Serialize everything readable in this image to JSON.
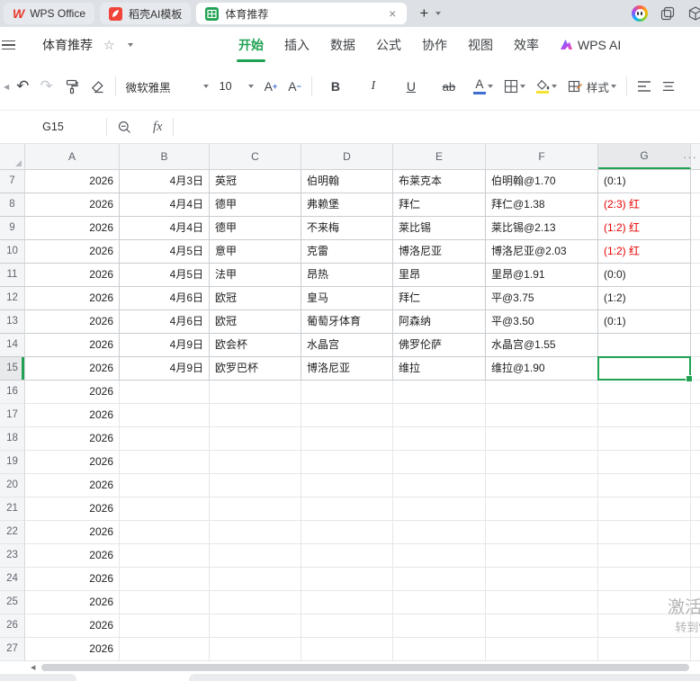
{
  "tab_bar": {
    "tabs": [
      {
        "label": "WPS Office",
        "active": false
      },
      {
        "label": "稻壳AI模板",
        "active": false
      },
      {
        "label": "体育推荐",
        "active": true
      }
    ],
    "close_icon": "×",
    "new_tab_icon": "+"
  },
  "menu_bar": {
    "doc_title": "体育推荐",
    "star_icon": "☆",
    "items": [
      {
        "label": "开始",
        "active": true
      },
      {
        "label": "插入",
        "active": false
      },
      {
        "label": "数据",
        "active": false
      },
      {
        "label": "公式",
        "active": false
      },
      {
        "label": "协作",
        "active": false
      },
      {
        "label": "视图",
        "active": false
      },
      {
        "label": "效率",
        "active": false
      },
      {
        "label": "WPS AI",
        "active": false
      }
    ]
  },
  "toolbar": {
    "undo_icon": "↶",
    "redo_icon": "↷",
    "font_name": "微软雅黑",
    "font_size": "10",
    "grow_font_letter": "A",
    "grow_font_sign": "+",
    "shrink_font_letter": "A",
    "shrink_font_sign": "−",
    "bold_label": "B",
    "italic_label": "I",
    "underline_label": "U",
    "strikethrough_label": "ab",
    "font_color_letter": "A",
    "style_label": "样式"
  },
  "formula_bar": {
    "name_box": "G15",
    "fx_icon": "fx",
    "formula_value": ""
  },
  "sheet": {
    "columns": [
      "A",
      "B",
      "C",
      "D",
      "E",
      "F",
      "G"
    ],
    "overflow_icon": "···",
    "selected_cell": "G15",
    "rows": [
      {
        "n": "7",
        "a": "2026",
        "b": "4月3日",
        "c": "英冠",
        "d": "伯明翰",
        "e": "布莱克本",
        "f": "伯明翰@1.70",
        "g": "(0:1)",
        "g_red": false,
        "selected": false
      },
      {
        "n": "8",
        "a": "2026",
        "b": "4月4日",
        "c": "德甲",
        "d": "弗赖堡",
        "e": "拜仁",
        "f": "拜仁@1.38",
        "g": "(2:3) 红",
        "g_red": true,
        "selected": false
      },
      {
        "n": "9",
        "a": "2026",
        "b": "4月4日",
        "c": "德甲",
        "d": "不来梅",
        "e": "莱比锡",
        "f": "莱比锡@2.13",
        "g": "(1:2) 红",
        "g_red": true,
        "selected": false
      },
      {
        "n": "10",
        "a": "2026",
        "b": "4月5日",
        "c": "意甲",
        "d": "克雷",
        "e": "博洛尼亚",
        "f": "博洛尼亚@2.03",
        "g": "(1:2) 红",
        "g_red": true,
        "selected": false
      },
      {
        "n": "11",
        "a": "2026",
        "b": "4月5日",
        "c": "法甲",
        "d": "昂热",
        "e": "里昂",
        "f": "里昂@1.91",
        "g": "(0:0)",
        "g_red": false,
        "selected": false
      },
      {
        "n": "12",
        "a": "2026",
        "b": "4月6日",
        "c": "欧冠",
        "d": "皇马",
        "e": "拜仁",
        "f": "平@3.75",
        "g": "(1:2)",
        "g_red": false,
        "selected": false
      },
      {
        "n": "13",
        "a": "2026",
        "b": "4月6日",
        "c": "欧冠",
        "d": "葡萄牙体育",
        "e": "阿森纳",
        "f": "平@3.50",
        "g": "(0:1)",
        "g_red": false,
        "selected": false
      },
      {
        "n": "14",
        "a": "2026",
        "b": "4月9日",
        "c": "欧会杯",
        "d": "水晶宫",
        "e": "佛罗伦萨",
        "f": "水晶宫@1.55",
        "g": "",
        "g_red": false,
        "selected": false
      },
      {
        "n": "15",
        "a": "2026",
        "b": "4月9日",
        "c": "欧罗巴杯",
        "d": "博洛尼亚",
        "e": "维拉",
        "f": "维拉@1.90",
        "g": "",
        "g_red": false,
        "selected": true
      },
      {
        "n": "16",
        "a": "2026",
        "b": "",
        "c": "",
        "d": "",
        "e": "",
        "f": "",
        "g": "",
        "g_red": false,
        "selected": false
      },
      {
        "n": "17",
        "a": "2026",
        "b": "",
        "c": "",
        "d": "",
        "e": "",
        "f": "",
        "g": "",
        "g_red": false,
        "selected": false
      },
      {
        "n": "18",
        "a": "2026",
        "b": "",
        "c": "",
        "d": "",
        "e": "",
        "f": "",
        "g": "",
        "g_red": false,
        "selected": false
      },
      {
        "n": "19",
        "a": "2026",
        "b": "",
        "c": "",
        "d": "",
        "e": "",
        "f": "",
        "g": "",
        "g_red": false,
        "selected": false
      },
      {
        "n": "20",
        "a": "2026",
        "b": "",
        "c": "",
        "d": "",
        "e": "",
        "f": "",
        "g": "",
        "g_red": false,
        "selected": false
      },
      {
        "n": "21",
        "a": "2026",
        "b": "",
        "c": "",
        "d": "",
        "e": "",
        "f": "",
        "g": "",
        "g_red": false,
        "selected": false
      },
      {
        "n": "22",
        "a": "2026",
        "b": "",
        "c": "",
        "d": "",
        "e": "",
        "f": "",
        "g": "",
        "g_red": false,
        "selected": false
      },
      {
        "n": "23",
        "a": "2026",
        "b": "",
        "c": "",
        "d": "",
        "e": "",
        "f": "",
        "g": "",
        "g_red": false,
        "selected": false
      },
      {
        "n": "24",
        "a": "2026",
        "b": "",
        "c": "",
        "d": "",
        "e": "",
        "f": "",
        "g": "",
        "g_red": false,
        "selected": false
      },
      {
        "n": "25",
        "a": "2026",
        "b": "",
        "c": "",
        "d": "",
        "e": "",
        "f": "",
        "g": "",
        "g_red": false,
        "selected": false
      },
      {
        "n": "26",
        "a": "2026",
        "b": "",
        "c": "",
        "d": "",
        "e": "",
        "f": "",
        "g": "",
        "g_red": false,
        "selected": false
      },
      {
        "n": "27",
        "a": "2026",
        "b": "",
        "c": "",
        "d": "",
        "e": "",
        "f": "",
        "g": "",
        "g_red": false,
        "selected": false
      }
    ]
  },
  "watermark": {
    "line1": "激活",
    "line2": "转到\""
  },
  "colors": {
    "accent_green": "#21a253",
    "alert_red": "#e60000",
    "font_color_blue": "#3e6ed0",
    "fill_yellow": "#f5e332",
    "tab_bar_bg": "#dde1e6",
    "docer_red": "#f04438",
    "wps_logo_red": "#e8392b",
    "sheet_icon_green": "#21a253"
  }
}
